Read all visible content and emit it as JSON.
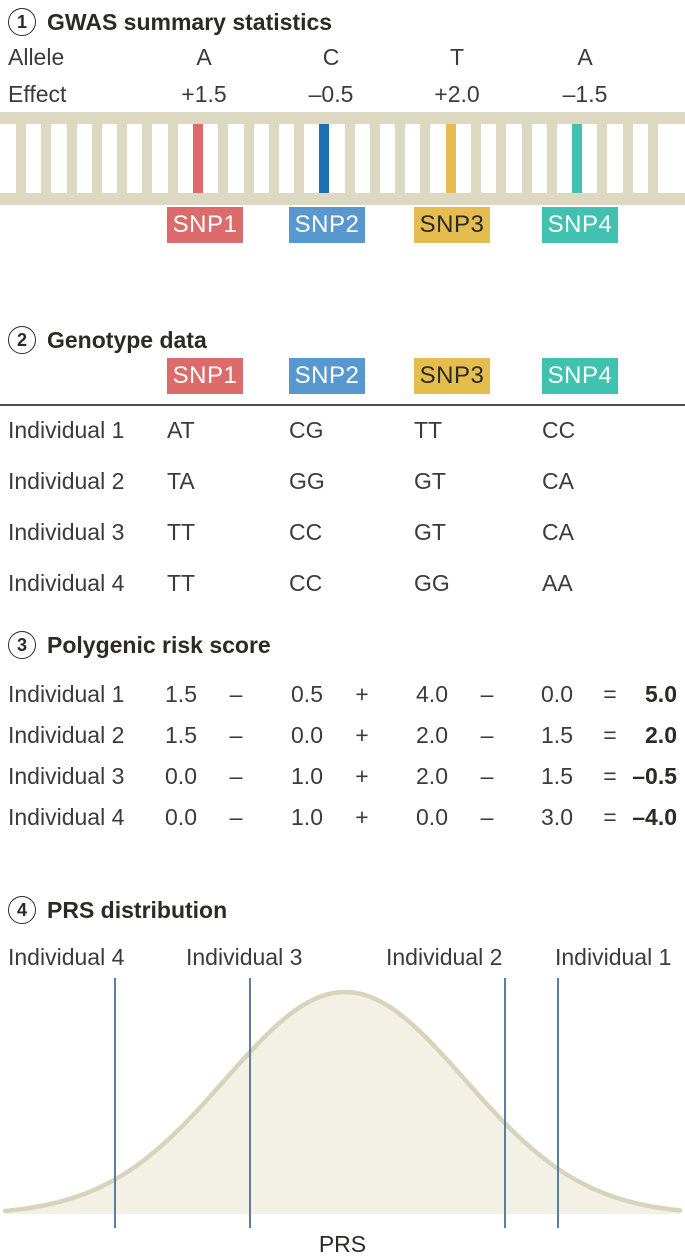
{
  "panel1": {
    "number": "1",
    "title": "GWAS summary statistics",
    "allele_label": "Allele",
    "effect_label": "Effect",
    "snps": [
      {
        "name": "SNP1",
        "allele": "A",
        "effect": "+1.5",
        "chip_color": "#DC6C6C",
        "rung_color": "#DC6C6C",
        "text_color": "#ffffff"
      },
      {
        "name": "SNP2",
        "allele": "C",
        "effect": "–0.5",
        "chip_color": "#5898CE",
        "rung_color": "#1A6FB5",
        "text_color": "#ffffff"
      },
      {
        "name": "SNP3",
        "allele": "T",
        "effect": "+2.0",
        "chip_color": "#E5BC4E",
        "rung_color": "#E5BC4E",
        "text_color": "#2b2a28"
      },
      {
        "name": "SNP4",
        "allele": "A",
        "effect": "–1.5",
        "chip_color": "#41C1B0",
        "rung_color": "#41C1B0",
        "text_color": "#ffffff"
      }
    ]
  },
  "panel2": {
    "number": "2",
    "title": "Genotype data",
    "rows": [
      {
        "label": "Individual 1",
        "genotypes": [
          "AT",
          "CG",
          "TT",
          "CC"
        ]
      },
      {
        "label": "Individual 2",
        "genotypes": [
          "TA",
          "GG",
          "GT",
          "CA"
        ]
      },
      {
        "label": "Individual 3",
        "genotypes": [
          "TT",
          "CC",
          "GT",
          "CA"
        ]
      },
      {
        "label": "Individual 4",
        "genotypes": [
          "TT",
          "CC",
          "GG",
          "AA"
        ]
      }
    ]
  },
  "panel3": {
    "number": "3",
    "title": "Polygenic risk score",
    "rows": [
      {
        "label": "Individual 1",
        "v1": "1.5",
        "op1": "–",
        "v2": "0.5",
        "op2": "+",
        "v3": "4.0",
        "op3": "–",
        "v4": "0.0",
        "eq": "=",
        "result": "5.0"
      },
      {
        "label": "Individual 2",
        "v1": "1.5",
        "op1": "–",
        "v2": "0.0",
        "op2": "+",
        "v3": "2.0",
        "op3": "–",
        "v4": "1.5",
        "eq": "=",
        "result": "2.0"
      },
      {
        "label": "Individual 3",
        "v1": "0.0",
        "op1": "–",
        "v2": "1.0",
        "op2": "+",
        "v3": "2.0",
        "op3": "–",
        "v4": "1.5",
        "eq": "=",
        "result": "–0.5"
      },
      {
        "label": "Individual 4",
        "v1": "0.0",
        "op1": "–",
        "v2": "1.0",
        "op2": "+",
        "v3": "0.0",
        "op3": "–",
        "v4": "3.0",
        "eq": "=",
        "result": "–4.0"
      }
    ]
  },
  "panel4": {
    "number": "4",
    "title": "PRS distribution",
    "axis_label": "PRS",
    "markers": [
      {
        "label": "Individual 4",
        "prs": -4.0
      },
      {
        "label": "Individual 3",
        "prs": -0.5
      },
      {
        "label": "Individual 2",
        "prs": 2.0
      },
      {
        "label": "Individual 1",
        "prs": 5.0
      }
    ]
  },
  "chart_data": {
    "type": "area",
    "title": "PRS distribution",
    "xlabel": "PRS",
    "distribution": "normal bell curve, no numeric axes shown",
    "markers": [
      {
        "label": "Individual 4",
        "prs": -4.0
      },
      {
        "label": "Individual 3",
        "prs": -0.5
      },
      {
        "label": "Individual 2",
        "prs": 2.0
      },
      {
        "label": "Individual 1",
        "prs": 5.0
      }
    ],
    "curve_stroke_color": "#D7D3BC",
    "curve_fill_color": "#F3F1E5",
    "marker_line_color": "#5C7EA0"
  }
}
